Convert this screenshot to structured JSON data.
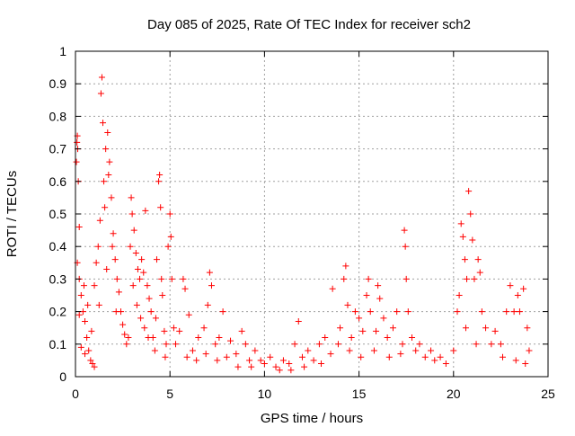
{
  "chart_data": {
    "type": "scatter",
    "title": "Day 085 of 2025, Rate Of TEC Index for receiver sch2",
    "xlabel": "GPS time / hours",
    "ylabel": "ROTI / TECUs",
    "xlim": [
      0,
      25
    ],
    "ylim": [
      0,
      1
    ],
    "xticks": [
      0,
      5,
      10,
      15,
      20,
      25
    ],
    "xtick_labels": [
      "0",
      "5",
      "10",
      "15",
      "20",
      "25"
    ],
    "yticks": [
      0,
      0.1,
      0.2,
      0.3,
      0.4,
      0.5,
      0.6,
      0.7,
      0.8,
      0.9,
      1
    ],
    "ytick_labels": [
      "0",
      "0.1",
      "0.2",
      "0.3",
      "0.4",
      "0.5",
      "0.6",
      "0.7",
      "0.8",
      "0.9",
      "1"
    ],
    "grid": true,
    "marker": "+",
    "marker_color": "#ff0000",
    "series": [
      {
        "name": "ROTI",
        "points": [
          [
            0.05,
            0.66
          ],
          [
            0.08,
            0.72
          ],
          [
            0.1,
            0.74
          ],
          [
            0.12,
            0.7
          ],
          [
            0.15,
            0.6
          ],
          [
            0.2,
            0.46
          ],
          [
            0.1,
            0.35
          ],
          [
            0.2,
            0.3
          ],
          [
            0.3,
            0.25
          ],
          [
            0.4,
            0.2
          ],
          [
            0.5,
            0.17
          ],
          [
            0.6,
            0.12
          ],
          [
            0.7,
            0.08
          ],
          [
            0.8,
            0.05
          ],
          [
            0.9,
            0.04
          ],
          [
            1.0,
            0.03
          ],
          [
            0.3,
            0.09
          ],
          [
            0.5,
            0.07
          ],
          [
            0.2,
            0.19
          ],
          [
            0.45,
            0.28
          ],
          [
            0.65,
            0.22
          ],
          [
            0.85,
            0.14
          ],
          [
            1.0,
            0.28
          ],
          [
            1.1,
            0.35
          ],
          [
            1.2,
            0.4
          ],
          [
            1.3,
            0.48
          ],
          [
            1.35,
            0.87
          ],
          [
            1.4,
            0.92
          ],
          [
            1.45,
            0.78
          ],
          [
            1.5,
            0.6
          ],
          [
            1.6,
            0.7
          ],
          [
            1.7,
            0.75
          ],
          [
            1.8,
            0.66
          ],
          [
            1.9,
            0.55
          ],
          [
            2.0,
            0.44
          ],
          [
            2.1,
            0.36
          ],
          [
            2.2,
            0.3
          ],
          [
            2.3,
            0.26
          ],
          [
            1.55,
            0.52
          ],
          [
            1.75,
            0.62
          ],
          [
            1.95,
            0.4
          ],
          [
            2.15,
            0.2
          ],
          [
            1.65,
            0.33
          ],
          [
            1.25,
            0.22
          ],
          [
            2.4,
            0.2
          ],
          [
            2.5,
            0.16
          ],
          [
            2.6,
            0.13
          ],
          [
            2.7,
            0.1
          ],
          [
            2.8,
            0.12
          ],
          [
            2.9,
            0.4
          ],
          [
            2.95,
            0.55
          ],
          [
            3.0,
            0.5
          ],
          [
            3.1,
            0.45
          ],
          [
            3.2,
            0.38
          ],
          [
            3.3,
            0.33
          ],
          [
            3.4,
            0.3
          ],
          [
            3.5,
            0.36
          ],
          [
            3.6,
            0.32
          ],
          [
            3.7,
            0.51
          ],
          [
            3.8,
            0.28
          ],
          [
            3.9,
            0.24
          ],
          [
            4.0,
            0.2
          ],
          [
            3.05,
            0.28
          ],
          [
            3.25,
            0.22
          ],
          [
            3.45,
            0.18
          ],
          [
            3.65,
            0.15
          ],
          [
            3.85,
            0.12
          ],
          [
            4.1,
            0.12
          ],
          [
            4.2,
            0.08
          ],
          [
            4.3,
            0.36
          ],
          [
            4.4,
            0.6
          ],
          [
            4.45,
            0.62
          ],
          [
            4.5,
            0.52
          ],
          [
            4.6,
            0.25
          ],
          [
            4.7,
            0.14
          ],
          [
            4.8,
            0.1
          ],
          [
            4.9,
            0.4
          ],
          [
            5.0,
            0.5
          ],
          [
            5.05,
            0.43
          ],
          [
            5.1,
            0.3
          ],
          [
            5.2,
            0.15
          ],
          [
            5.3,
            0.1
          ],
          [
            4.25,
            0.18
          ],
          [
            4.55,
            0.3
          ],
          [
            4.75,
            0.06
          ],
          [
            5.5,
            0.14
          ],
          [
            5.7,
            0.3
          ],
          [
            5.8,
            0.27
          ],
          [
            6.0,
            0.19
          ],
          [
            6.2,
            0.08
          ],
          [
            6.5,
            0.12
          ],
          [
            6.8,
            0.15
          ],
          [
            7.0,
            0.22
          ],
          [
            7.1,
            0.32
          ],
          [
            7.2,
            0.28
          ],
          [
            7.4,
            0.1
          ],
          [
            7.6,
            0.12
          ],
          [
            7.8,
            0.2
          ],
          [
            8.0,
            0.06
          ],
          [
            5.9,
            0.06
          ],
          [
            6.4,
            0.05
          ],
          [
            6.9,
            0.07
          ],
          [
            7.5,
            0.05
          ],
          [
            8.2,
            0.11
          ],
          [
            8.5,
            0.07
          ],
          [
            8.8,
            0.14
          ],
          [
            9.0,
            0.1
          ],
          [
            9.2,
            0.05
          ],
          [
            9.5,
            0.08
          ],
          [
            9.8,
            0.05
          ],
          [
            10.0,
            0.04
          ],
          [
            10.3,
            0.06
          ],
          [
            10.6,
            0.03
          ],
          [
            11.0,
            0.05
          ],
          [
            11.3,
            0.04
          ],
          [
            11.6,
            0.1
          ],
          [
            11.8,
            0.17
          ],
          [
            12.0,
            0.06
          ],
          [
            12.3,
            0.08
          ],
          [
            12.6,
            0.05
          ],
          [
            12.9,
            0.1
          ],
          [
            13.2,
            0.12
          ],
          [
            13.5,
            0.07
          ],
          [
            13.6,
            0.27
          ],
          [
            13.9,
            0.1
          ],
          [
            8.6,
            0.03
          ],
          [
            9.3,
            0.03
          ],
          [
            10.8,
            0.02
          ],
          [
            11.4,
            0.02
          ],
          [
            12.1,
            0.03
          ],
          [
            13.0,
            0.04
          ],
          [
            14.0,
            0.15
          ],
          [
            14.2,
            0.3
          ],
          [
            14.3,
            0.34
          ],
          [
            14.4,
            0.22
          ],
          [
            14.6,
            0.12
          ],
          [
            14.8,
            0.2
          ],
          [
            15.0,
            0.18
          ],
          [
            15.2,
            0.14
          ],
          [
            15.4,
            0.25
          ],
          [
            15.6,
            0.2
          ],
          [
            15.9,
            0.14
          ],
          [
            16.1,
            0.24
          ],
          [
            16.3,
            0.18
          ],
          [
            16.5,
            0.12
          ],
          [
            16.8,
            0.15
          ],
          [
            17.0,
            0.2
          ],
          [
            17.3,
            0.1
          ],
          [
            17.4,
            0.45
          ],
          [
            17.45,
            0.4
          ],
          [
            17.5,
            0.3
          ],
          [
            17.6,
            0.2
          ],
          [
            17.8,
            0.12
          ],
          [
            18.0,
            0.08
          ],
          [
            14.5,
            0.08
          ],
          [
            15.1,
            0.06
          ],
          [
            15.8,
            0.08
          ],
          [
            16.6,
            0.06
          ],
          [
            17.2,
            0.07
          ],
          [
            15.5,
            0.3
          ],
          [
            16.0,
            0.28
          ],
          [
            18.2,
            0.1
          ],
          [
            18.5,
            0.06
          ],
          [
            18.8,
            0.08
          ],
          [
            19.0,
            0.05
          ],
          [
            19.3,
            0.06
          ],
          [
            19.6,
            0.04
          ],
          [
            20.0,
            0.08
          ],
          [
            20.2,
            0.2
          ],
          [
            20.4,
            0.47
          ],
          [
            20.5,
            0.43
          ],
          [
            20.6,
            0.36
          ],
          [
            20.7,
            0.3
          ],
          [
            20.8,
            0.57
          ],
          [
            20.9,
            0.5
          ],
          [
            21.0,
            0.42
          ],
          [
            21.1,
            0.3
          ],
          [
            21.3,
            0.36
          ],
          [
            21.4,
            0.32
          ],
          [
            21.5,
            0.2
          ],
          [
            21.7,
            0.15
          ],
          [
            22.0,
            0.1
          ],
          [
            20.3,
            0.25
          ],
          [
            20.65,
            0.15
          ],
          [
            21.2,
            0.1
          ],
          [
            22.2,
            0.14
          ],
          [
            22.5,
            0.1
          ],
          [
            22.8,
            0.2
          ],
          [
            23.0,
            0.28
          ],
          [
            23.2,
            0.2
          ],
          [
            23.4,
            0.25
          ],
          [
            23.5,
            0.2
          ],
          [
            23.7,
            0.27
          ],
          [
            23.9,
            0.15
          ],
          [
            24.0,
            0.08
          ],
          [
            22.6,
            0.06
          ],
          [
            23.3,
            0.05
          ],
          [
            23.8,
            0.04
          ]
        ]
      }
    ]
  }
}
